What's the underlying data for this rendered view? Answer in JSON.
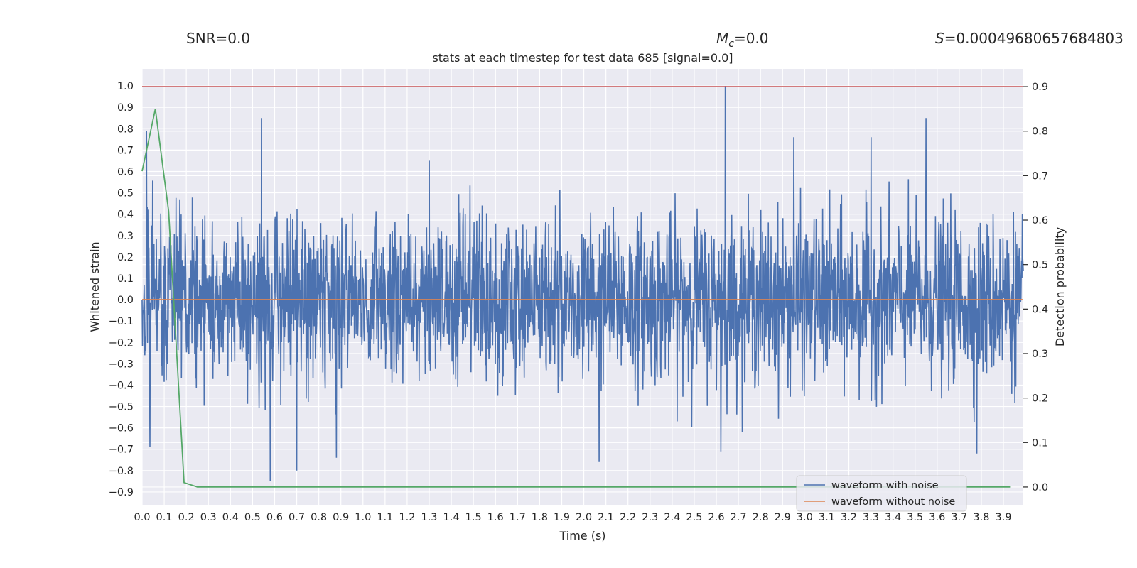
{
  "chart_data": {
    "type": "line",
    "header": {
      "snr": "SNR=0.0",
      "mc_symbol": "M",
      "mc_sub": "c",
      "mc_value": "=0.0",
      "s_symbol": "S",
      "s_value": "=0.00049680657684803"
    },
    "title": "stats at each timestep for test data 685 [signal=0.0]",
    "xlabel": "Time (s)",
    "ylabel_left": "Whitened strain",
    "ylabel_right": "Detection probability",
    "xlim": [
      0,
      3.99
    ],
    "ylim_left": [
      -0.96,
      1.08
    ],
    "ylim_right": [
      -0.04,
      0.94
    ],
    "x_ticks": [
      "0.0",
      "0.1",
      "0.2",
      "0.3",
      "0.4",
      "0.5",
      "0.6",
      "0.7",
      "0.8",
      "0.9",
      "1.0",
      "1.1",
      "1.2",
      "1.3",
      "1.4",
      "1.5",
      "1.6",
      "1.7",
      "1.8",
      "1.9",
      "2.0",
      "2.1",
      "2.2",
      "2.3",
      "2.4",
      "2.5",
      "2.6",
      "2.7",
      "2.8",
      "2.9",
      "3.0",
      "3.1",
      "3.2",
      "3.3",
      "3.4",
      "3.5",
      "3.6",
      "3.7",
      "3.8",
      "3.9"
    ],
    "y_ticks_left": [
      "1.0",
      "0.9",
      "0.8",
      "0.7",
      "0.6",
      "0.5",
      "0.4",
      "0.3",
      "0.2",
      "0.1",
      "0.0",
      "−0.1",
      "−0.2",
      "−0.3",
      "−0.4",
      "−0.5",
      "−0.6",
      "−0.7",
      "−0.8",
      "−0.9"
    ],
    "y_ticks_left_values": [
      1.0,
      0.9,
      0.8,
      0.7,
      0.6,
      0.5,
      0.4,
      0.3,
      0.2,
      0.1,
      0.0,
      -0.1,
      -0.2,
      -0.3,
      -0.4,
      -0.5,
      -0.6,
      -0.7,
      -0.8,
      -0.9
    ],
    "y_ticks_right": [
      "0.9",
      "0.8",
      "0.7",
      "0.6",
      "0.5",
      "0.4",
      "0.3",
      "0.2",
      "0.1",
      "0.0"
    ],
    "y_ticks_right_values": [
      0.9,
      0.8,
      0.7,
      0.6,
      0.5,
      0.4,
      0.3,
      0.2,
      0.1,
      0.0
    ],
    "threshold_line": {
      "axis": "right",
      "value": 0.9,
      "color": "#c44e52"
    },
    "series": [
      {
        "name": "waveform with noise",
        "axis": "left",
        "color": "#4c72b0",
        "description": "dense noisy whitened strain, roughly within -0.85..1.0, notable spikes",
        "spikes": [
          {
            "x": 0.02,
            "y": 0.79
          },
          {
            "x": 0.035,
            "y": -0.69
          },
          {
            "x": 0.54,
            "y": 0.85
          },
          {
            "x": 0.58,
            "y": -0.85
          },
          {
            "x": 0.7,
            "y": -0.8
          },
          {
            "x": 0.88,
            "y": -0.74
          },
          {
            "x": 2.07,
            "y": -0.76
          },
          {
            "x": 2.64,
            "y": 1.0
          },
          {
            "x": 2.62,
            "y": -0.71
          },
          {
            "x": 3.55,
            "y": 0.85
          },
          {
            "x": 3.78,
            "y": -0.72
          },
          {
            "x": 1.3,
            "y": 0.65
          },
          {
            "x": 3.3,
            "y": 0.76
          },
          {
            "x": 2.95,
            "y": 0.76
          }
        ]
      },
      {
        "name": "waveform without noise",
        "axis": "left",
        "color": "#dd8452",
        "x": [
          0.0,
          3.99
        ],
        "y": [
          0.0,
          0.0
        ]
      },
      {
        "name": "detection probability",
        "axis": "right",
        "color": "#55a868",
        "x": [
          0.0,
          0.06,
          0.12,
          0.19,
          0.25,
          0.6,
          2.8,
          3.0,
          3.93
        ],
        "y": [
          0.71,
          0.85,
          0.62,
          0.01,
          0.0,
          0.0,
          0.0,
          0.0,
          0.0
        ]
      }
    ],
    "legend": {
      "placement": "lower-right",
      "entries": [
        {
          "label": "waveform with noise",
          "color": "#4c72b0"
        },
        {
          "label": "waveform without noise",
          "color": "#dd8452"
        }
      ]
    },
    "colors": {
      "plot_bg": "#eaeaf2",
      "grid": "#ffffff",
      "tick_mark": "#262626"
    }
  }
}
